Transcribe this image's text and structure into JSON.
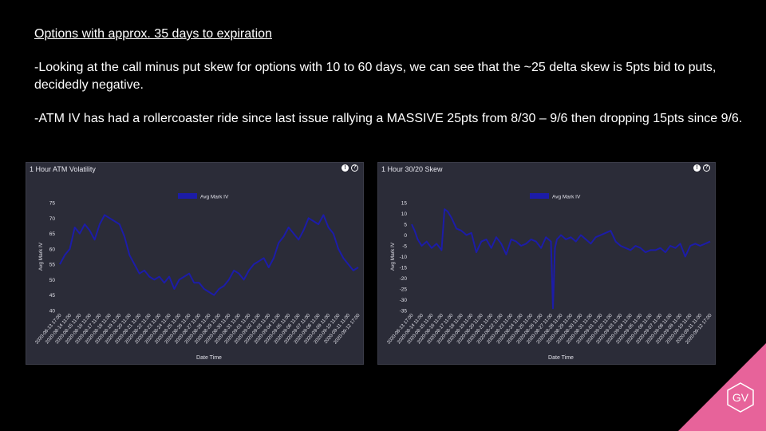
{
  "slide": {
    "title": "Options with approx. 35 days to expiration",
    "bullets": [
      "-Looking at the call minus put skew for options with 10 to 60 days, we can see that the ~25 delta skew is 5pts bid to puts, decidedly negative.",
      "-ATM IV has had a rollercoaster ride since last issue rallying a MASSIVE 25pts from 8/30 – 9/6 then dropping 15pts since 9/6."
    ]
  },
  "logo": {
    "text": "GV",
    "color": "#e7639a"
  },
  "colors": {
    "series": "#1c1ca8",
    "panel_bg": "#2b2c38"
  },
  "chart_data": [
    {
      "type": "line",
      "title": "1 Hour ATM Volatility",
      "xlabel": "Date Time",
      "ylabel": "Avg Mark IV",
      "legend": "top",
      "grid": false,
      "ylim": [
        40,
        75
      ],
      "yticks": [
        40,
        45,
        50,
        55,
        60,
        65,
        70,
        75
      ],
      "xticks": [
        "2020-08-13 17:00",
        "2020-08-14 11:00",
        "2020-08-15 11:00",
        "2020-08-16 11:00",
        "2020-08-17 11:00",
        "2020-08-18 11:00",
        "2020-08-19 11:00",
        "2020-08-20 11:00",
        "2020-08-21 11:00",
        "2020-08-22 11:00",
        "2020-08-23 11:00",
        "2020-08-24 11:00",
        "2020-08-25 11:00",
        "2020-08-26 11:00",
        "2020-08-27 11:00",
        "2020-08-28 11:00",
        "2020-08-29 11:00",
        "2020-08-30 11:00",
        "2020-08-31 11:00",
        "2020-09-01 11:00",
        "2020-09-02 11:00",
        "2020-09-03 11:00",
        "2020-09-04 11:00",
        "2020-09-05 11:00",
        "2020-09-06 11:00",
        "2020-09-07 11:00",
        "2020-09-08 11:00",
        "2020-09-09 11:00",
        "2020-09-10 11:00",
        "2020-09-11 11:00",
        "2020-09-12 17:00"
      ],
      "series": [
        {
          "name": "Avg Mark IV",
          "x": [
            0,
            0.5,
            1,
            1.5,
            2,
            2.5,
            3,
            3.5,
            4,
            4.5,
            5,
            5.5,
            6,
            6.5,
            7,
            7.5,
            8,
            8.5,
            9,
            9.5,
            10,
            10.5,
            11,
            11.5,
            12,
            12.5,
            13,
            13.5,
            14,
            14.5,
            15,
            15.5,
            16,
            16.5,
            17,
            17.5,
            18,
            18.5,
            19,
            19.5,
            20,
            20.5,
            21,
            21.5,
            22,
            22.5,
            23,
            23.5,
            24,
            24.5,
            25,
            25.5,
            26,
            26.5,
            27,
            27.5,
            28,
            28.5,
            29,
            29.5,
            30
          ],
          "values": [
            55,
            58,
            60,
            67,
            65,
            68,
            66,
            63,
            68,
            71,
            70,
            69,
            68,
            64,
            58,
            55,
            52,
            53,
            51,
            50,
            51,
            49,
            51,
            47,
            50,
            51,
            52,
            49,
            49,
            47,
            46,
            45,
            47,
            48,
            50,
            53,
            52,
            50,
            53,
            55,
            56,
            57,
            54,
            57,
            62,
            64,
            67,
            65,
            63,
            66,
            70,
            69,
            68,
            71,
            67,
            65,
            60,
            57,
            55,
            53,
            54
          ]
        }
      ]
    },
    {
      "type": "line",
      "title": "1 Hour 30/20 Skew",
      "xlabel": "Date Time",
      "ylabel": "Avg Mark IV",
      "legend": "top",
      "grid": false,
      "ylim": [
        -35,
        15
      ],
      "yticks": [
        -35,
        -30,
        -25,
        -20,
        -15,
        -10,
        -5,
        0,
        5,
        10,
        15
      ],
      "xticks": [
        "2020-08-13 17:00",
        "2020-08-14 11:00",
        "2020-08-15 11:00",
        "2020-08-16 11:00",
        "2020-08-17 11:00",
        "2020-08-18 11:00",
        "2020-08-19 11:00",
        "2020-08-20 11:00",
        "2020-08-21 11:00",
        "2020-08-22 11:00",
        "2020-08-23 11:00",
        "2020-08-24 11:00",
        "2020-08-25 11:00",
        "2020-08-26 11:00",
        "2020-08-27 11:00",
        "2020-08-28 11:00",
        "2020-08-29 11:00",
        "2020-08-30 11:00",
        "2020-08-31 11:00",
        "2020-09-01 11:00",
        "2020-09-02 11:00",
        "2020-09-03 11:00",
        "2020-09-04 11:00",
        "2020-09-05 11:00",
        "2020-09-06 11:00",
        "2020-09-07 11:00",
        "2020-09-08 11:00",
        "2020-09-09 11:00",
        "2020-09-10 11:00",
        "2020-09-11 11:00",
        "2020-09-12 17:00"
      ],
      "series": [
        {
          "name": "Avg Mark IV",
          "x": [
            0,
            0.3,
            0.6,
            1,
            1.5,
            2,
            2.5,
            3,
            3.3,
            3.6,
            4,
            4.5,
            5,
            5.5,
            6,
            6.5,
            7,
            7.5,
            8,
            8.5,
            9,
            9.5,
            10,
            10.5,
            11,
            11.5,
            12,
            12.5,
            13,
            13.5,
            14,
            14.2,
            14.4,
            14.6,
            15,
            15.5,
            16,
            16.5,
            17,
            17.5,
            18,
            18.5,
            19,
            19.5,
            20,
            20.5,
            21,
            21.5,
            22,
            22.5,
            23,
            23.5,
            24,
            24.5,
            25,
            25.5,
            26,
            26.5,
            27,
            27.5,
            28,
            28.5,
            29,
            29.5,
            30
          ],
          "values": [
            5,
            2,
            -2,
            -5,
            -3,
            -6,
            -4,
            -7,
            12,
            11,
            8,
            3,
            2,
            0,
            1,
            -8,
            -3,
            -2,
            -6,
            -1,
            -4,
            -9,
            -2,
            -3,
            -5,
            -4,
            -2,
            -3,
            -6,
            -1,
            -3,
            -34,
            -6,
            -2,
            0,
            -2,
            -1,
            -3,
            0,
            -2,
            -4,
            -1,
            0,
            1,
            2,
            -3,
            -5,
            -6,
            -7,
            -5,
            -6,
            -8,
            -7,
            -7,
            -6,
            -8,
            -5,
            -6,
            -4,
            -10,
            -5,
            -4,
            -5,
            -4,
            -3
          ]
        }
      ]
    }
  ]
}
